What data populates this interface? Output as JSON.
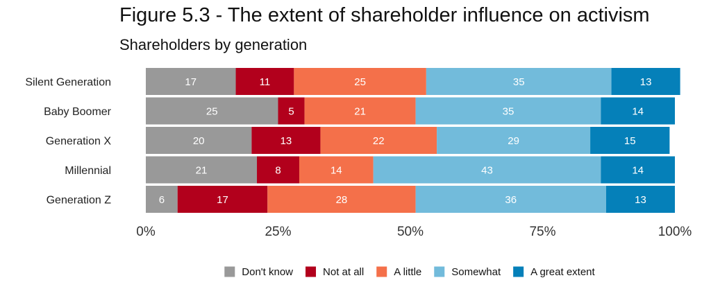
{
  "chart_data": {
    "type": "bar",
    "orientation": "horizontal",
    "stacked": true,
    "percent": true,
    "title": "Figure 5.3 - The extent of shareholder influence on activism",
    "subtitle": "Shareholders by generation",
    "xlabel": "",
    "ylabel": "",
    "xlim": [
      0,
      100
    ],
    "x_ticks": [
      "0%",
      "25%",
      "50%",
      "75%",
      "100%"
    ],
    "x_tick_values": [
      0,
      25,
      50,
      75,
      100
    ],
    "grid": false,
    "legend_position": "bottom",
    "categories": [
      "Silent Generation",
      "Baby Boomer",
      "Generation X",
      "Millennial",
      "Generation Z"
    ],
    "series": [
      {
        "name": "Don't know",
        "color": "#999999",
        "values": [
          17,
          25,
          20,
          21,
          6
        ]
      },
      {
        "name": "Not at all",
        "color": "#b2001c",
        "values": [
          11,
          5,
          13,
          8,
          17
        ]
      },
      {
        "name": "A little",
        "color": "#f4704a",
        "values": [
          25,
          21,
          22,
          14,
          28
        ]
      },
      {
        "name": "Somewhat",
        "color": "#72bbdb",
        "values": [
          35,
          35,
          29,
          43,
          36
        ]
      },
      {
        "name": "A great extent",
        "color": "#0580b9",
        "values": [
          13,
          14,
          15,
          14,
          13
        ]
      }
    ]
  }
}
